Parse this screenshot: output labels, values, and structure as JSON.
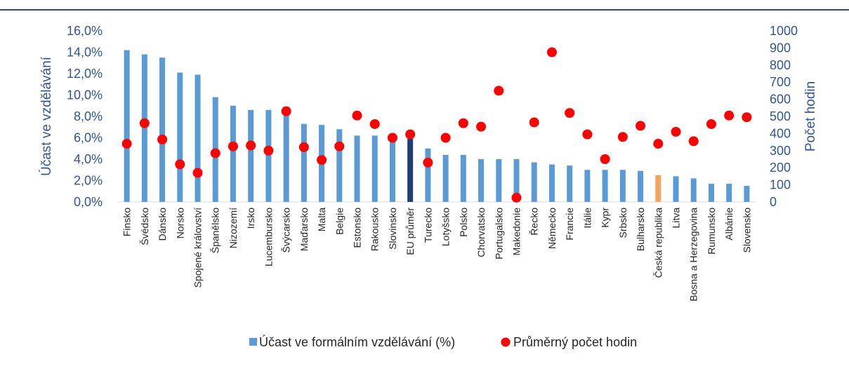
{
  "chart_data": {
    "type": "bar_scatter",
    "categories": [
      "Finsko",
      "Švédsko",
      "Dánsko",
      "Norsko",
      "Spojené království",
      "Španělsko",
      "Nizozemí",
      "Irsko",
      "Lucembursko",
      "Švýcarsko",
      "Maďarsko",
      "Malta",
      "Belgie",
      "Estonsko",
      "Rakousko",
      "Slovinsko",
      "EU průměr",
      "Turecko",
      "Lotyšsko",
      "Polsko",
      "Chorvatsko",
      "Portugalsko",
      "Makedonie",
      "Řecko",
      "Německo",
      "Francie",
      "Itálie",
      "Kypr",
      "Srbsko",
      "Bulharsko",
      "Česká republika",
      "Litva",
      "Bosna a Herzegovina",
      "Rumunsko",
      "Albánie",
      "Slovensko"
    ],
    "series": [
      {
        "name": "Účast ve formálním vzdělávání (%)",
        "color": "#5b9bd5",
        "highlight_colors": {
          "16": "#203f74",
          "30": "#f4a460"
        },
        "values": [
          14.2,
          13.8,
          13.5,
          12.1,
          11.9,
          9.8,
          9.0,
          8.6,
          8.6,
          8.5,
          7.3,
          7.2,
          6.8,
          6.2,
          6.2,
          5.8,
          5.9,
          5.0,
          4.4,
          4.4,
          4.0,
          4.0,
          4.0,
          3.7,
          3.5,
          3.4,
          3.0,
          3.0,
          3.0,
          2.9,
          2.5,
          2.4,
          2.2,
          1.7,
          1.7,
          1.5
        ]
      },
      {
        "name": "Průměrný počet hodin",
        "color": "#ff0000",
        "axis": "y2",
        "values": [
          340,
          460,
          365,
          220,
          170,
          285,
          325,
          330,
          300,
          530,
          320,
          245,
          325,
          505,
          455,
          375,
          395,
          230,
          375,
          460,
          440,
          650,
          25,
          465,
          875,
          520,
          395,
          250,
          380,
          445,
          340,
          410,
          355,
          455,
          505,
          495
        ]
      }
    ],
    "ylabel": "Účast ve vzdělávání",
    "y2label": "Počet hodin",
    "ylim": [
      0,
      16
    ],
    "yticks": [
      {
        "value": 0,
        "label": "0,0%"
      },
      {
        "value": 2,
        "label": "2,0%"
      },
      {
        "value": 4,
        "label": "4,0%"
      },
      {
        "value": 6,
        "label": "6,0%"
      },
      {
        "value": 8,
        "label": "8,0%"
      },
      {
        "value": 10,
        "label": "10,0%"
      },
      {
        "value": 12,
        "label": "12,0%"
      },
      {
        "value": 14,
        "label": "14,0%"
      },
      {
        "value": 16,
        "label": "16,0%"
      }
    ],
    "y2lim": [
      0,
      1000
    ],
    "y2ticks": [
      0,
      100,
      200,
      300,
      400,
      500,
      600,
      700,
      800,
      900,
      1000
    ],
    "legend": "bottom"
  }
}
